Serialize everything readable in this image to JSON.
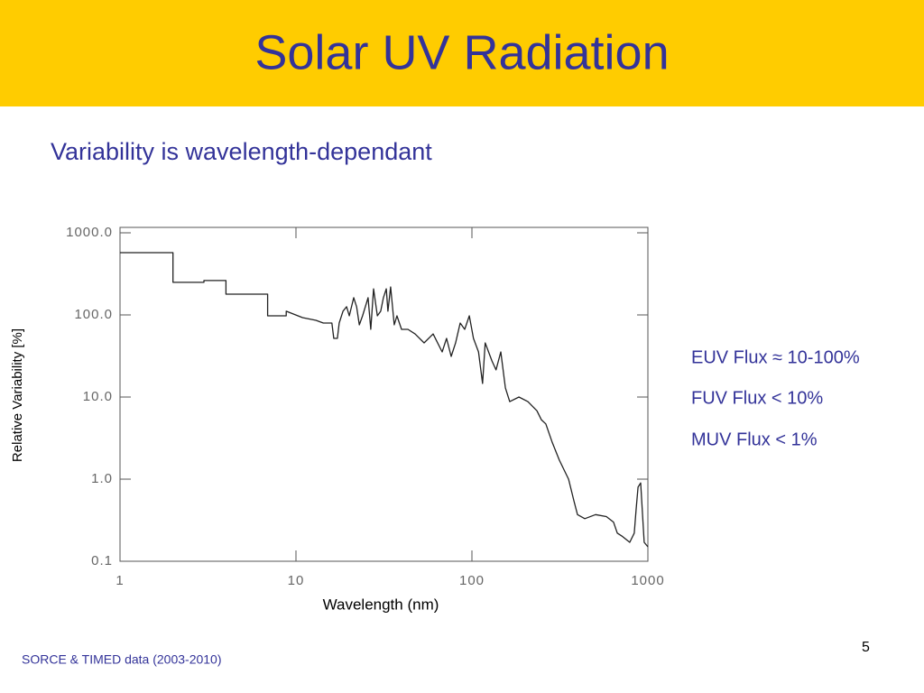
{
  "title": "Solar UV Radiation",
  "subtitle": "Variability is wavelength-dependant",
  "bullets": [
    "EUV Flux ≈ 10-100%",
    "FUV Flux < 10%",
    "MUV Flux <  1%"
  ],
  "footer": "SORCE & TIMED data (2003-2010)",
  "page_number": "5",
  "chart_data": {
    "type": "line",
    "x_label": "Wavelength (nm)",
    "y_label": "Relative Variability [%]",
    "x_log": true,
    "y_log": true,
    "xlim": [
      1,
      1000
    ],
    "ylim": [
      0.1,
      1000
    ],
    "xticks": [
      1,
      10,
      100,
      1000
    ],
    "yticks": [
      {
        "value": 1000,
        "label": "1000.0"
      },
      {
        "value": 100,
        "label": "100.0"
      },
      {
        "value": 10,
        "label": "10.0"
      },
      {
        "value": 1,
        "label": "1.0"
      },
      0.1
    ],
    "series": [
      {
        "name": "Relative Variability",
        "color": "#222222",
        "x": [
          1,
          2,
          2,
          3,
          3,
          4,
          4,
          6.9,
          6.9,
          8.8,
          8.8,
          10.9,
          13,
          14.3,
          16,
          16.4,
          17.2,
          17.6,
          18.5,
          19.4,
          20.1,
          21.3,
          22.1,
          22.9,
          23.9,
          25.7,
          26.6,
          27.6,
          29,
          30.3,
          31.4,
          32.6,
          33.3,
          34.5,
          36.2,
          37.5,
          39.8,
          43.3,
          47.5,
          53.5,
          60.2,
          67.7,
          71.8,
          76.2,
          80.8,
          85.8,
          91,
          96.6,
          102,
          109,
          115,
          119,
          130,
          137,
          146,
          155,
          164,
          185,
          208,
          234,
          248,
          263,
          286,
          314,
          354,
          380,
          398,
          438,
          504,
          581,
          638,
          670,
          718,
          789,
          837,
          857,
          879,
          910,
          953,
          1000
        ],
        "values": [
          573,
          573,
          249,
          249,
          262,
          262,
          179,
          179,
          97.5,
          97.5,
          111,
          92.7,
          85.9,
          79.6,
          79.6,
          51.8,
          51.8,
          79.6,
          111,
          126,
          97.5,
          162,
          126,
          75.7,
          97.5,
          162,
          66.7,
          208,
          97.5,
          111,
          162,
          208,
          111,
          219,
          75.7,
          97.5,
          66.7,
          66.7,
          58.7,
          45.6,
          58.7,
          35.4,
          51.8,
          31.2,
          45.6,
          79.6,
          66.7,
          97.5,
          51.8,
          35.4,
          14.6,
          45.6,
          27.5,
          21.4,
          35.4,
          12.9,
          8.8,
          10,
          8.8,
          6.8,
          5.3,
          4.7,
          2.8,
          1.7,
          1.0,
          0.54,
          0.37,
          0.33,
          0.37,
          0.35,
          0.3,
          0.22,
          0.2,
          0.17,
          0.22,
          0.42,
          0.8,
          0.9,
          0.17,
          0.15
        ]
      }
    ]
  }
}
